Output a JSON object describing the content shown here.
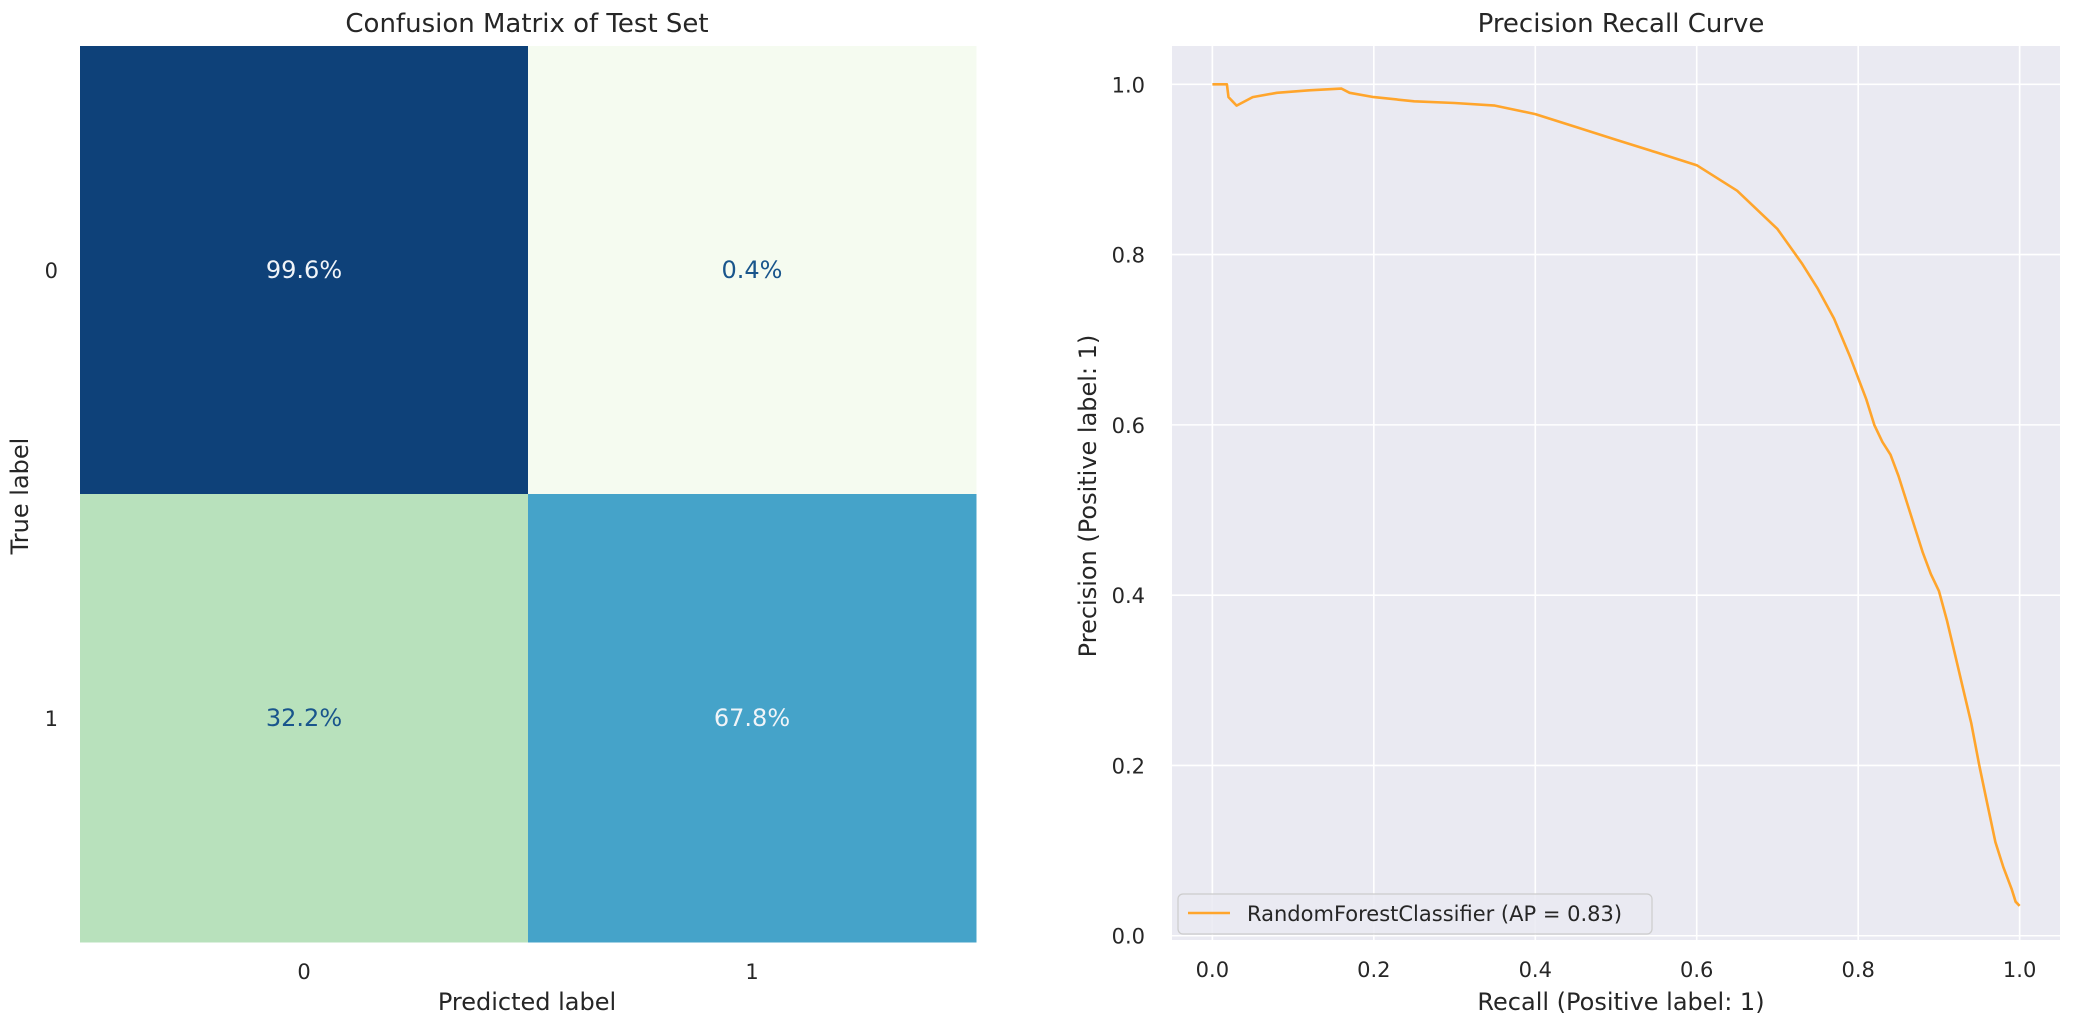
{
  "chart_data": [
    {
      "type": "heatmap",
      "title": "Confusion Matrix of Test Set",
      "xlabel": "Predicted label",
      "ylabel": "True label",
      "x_tick_labels": [
        "0",
        "1"
      ],
      "y_tick_labels": [
        "0",
        "1"
      ],
      "values": [
        [
          99.6,
          0.4
        ],
        [
          32.2,
          67.8
        ]
      ],
      "cell_labels": [
        [
          "99.6%",
          "0.4%"
        ],
        [
          "32.2%",
          "67.8%"
        ]
      ],
      "cell_colors": [
        [
          "#0e4179",
          "#f5fbf0"
        ],
        [
          "#b8e1bc",
          "#45a3c9"
        ]
      ],
      "text_colors": [
        [
          "#f0f4f8",
          "#19558c"
        ],
        [
          "#19558c",
          "#f0f4f8"
        ]
      ],
      "grid": false
    },
    {
      "type": "line",
      "title": "Precision Recall Curve",
      "xlabel": "Recall (Positive label: 1)",
      "ylabel": "Precision (Positive label: 1)",
      "xlim": [
        -0.05,
        1.05
      ],
      "ylim": [
        -0.005,
        1.045
      ],
      "x_ticks": [
        0.0,
        0.2,
        0.4,
        0.6,
        0.8,
        1.0
      ],
      "x_tick_labels": [
        "0.0",
        "0.2",
        "0.4",
        "0.6",
        "0.8",
        "1.0"
      ],
      "y_ticks": [
        0.0,
        0.2,
        0.4,
        0.6,
        0.8,
        1.0
      ],
      "y_tick_labels": [
        "0.0",
        "0.2",
        "0.4",
        "0.6",
        "0.8",
        "1.0"
      ],
      "grid": true,
      "legend_position": "lower-left",
      "series": [
        {
          "name": "RandomForestClassifier (AP = 0.83)",
          "color": "#ffa52c",
          "x": [
            0.0,
            0.018,
            0.02,
            0.025,
            0.03,
            0.05,
            0.08,
            0.12,
            0.16,
            0.17,
            0.2,
            0.25,
            0.3,
            0.35,
            0.4,
            0.45,
            0.5,
            0.55,
            0.6,
            0.65,
            0.7,
            0.73,
            0.75,
            0.77,
            0.79,
            0.8,
            0.81,
            0.82,
            0.83,
            0.84,
            0.85,
            0.86,
            0.87,
            0.88,
            0.89,
            0.9,
            0.91,
            0.92,
            0.93,
            0.94,
            0.95,
            0.96,
            0.97,
            0.98,
            0.99,
            0.995,
            1.0
          ],
          "y": [
            1.0,
            1.0,
            0.985,
            0.98,
            0.975,
            0.985,
            0.99,
            0.993,
            0.995,
            0.99,
            0.985,
            0.98,
            0.978,
            0.975,
            0.965,
            0.95,
            0.935,
            0.92,
            0.905,
            0.875,
            0.83,
            0.79,
            0.76,
            0.725,
            0.68,
            0.655,
            0.63,
            0.6,
            0.58,
            0.565,
            0.54,
            0.51,
            0.48,
            0.45,
            0.425,
            0.405,
            0.37,
            0.33,
            0.29,
            0.25,
            0.2,
            0.155,
            0.11,
            0.08,
            0.055,
            0.04,
            0.035
          ]
        }
      ]
    }
  ]
}
